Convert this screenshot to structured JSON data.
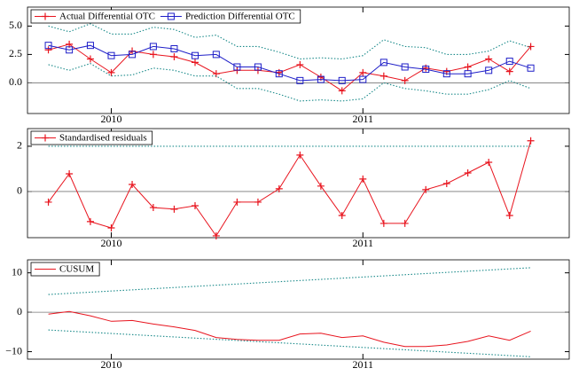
{
  "chart_data": [
    {
      "type": "line",
      "x": [
        2009.75,
        2009.833,
        2009.917,
        2010.0,
        2010.083,
        2010.167,
        2010.25,
        2010.333,
        2010.417,
        2010.5,
        2010.583,
        2010.667,
        2010.75,
        2010.833,
        2010.917,
        2011.0,
        2011.083,
        2011.167,
        2011.25,
        2011.333,
        2011.417,
        2011.5,
        2011.583,
        2011.667
      ],
      "xlim": [
        2009.667,
        2011.82
      ],
      "xticks": [
        2010,
        2011
      ],
      "ylim": [
        -2.7,
        6.67
      ],
      "yticks": [
        {
          "value": 0,
          "label": "0.0"
        },
        {
          "value": 2.5,
          "label": "2.5"
        },
        {
          "value": 5,
          "label": "5.0"
        }
      ],
      "zero_line": true,
      "series": [
        {
          "name": "Actual Differential OTC",
          "color": "#e8141e",
          "marker": "plus",
          "values": [
            2.9,
            3.4,
            2.1,
            0.9,
            2.8,
            2.5,
            2.3,
            1.8,
            0.8,
            1.1,
            1.1,
            0.9,
            1.6,
            0.5,
            -0.7,
            0.9,
            0.6,
            0.2,
            1.3,
            1.0,
            1.4,
            2.1,
            1.0,
            3.2
          ]
        },
        {
          "name": "Prediction Differential OTC",
          "color": "#1e1ec8",
          "marker": "square",
          "values": [
            3.3,
            2.9,
            3.3,
            2.4,
            2.5,
            3.2,
            3.0,
            2.4,
            2.5,
            1.4,
            1.4,
            0.8,
            0.2,
            0.3,
            0.2,
            0.3,
            1.8,
            1.4,
            1.2,
            0.8,
            0.8,
            1.1,
            1.9,
            1.3
          ]
        },
        {
          "color": "#1a8a8a",
          "dash": "dotted",
          "values": [
            5.0,
            4.5,
            5.2,
            4.3,
            4.3,
            4.9,
            4.7,
            4.0,
            4.2,
            3.2,
            3.2,
            2.7,
            2.1,
            2.2,
            2.1,
            2.4,
            3.8,
            3.2,
            3.1,
            2.5,
            2.5,
            2.8,
            3.7,
            3.1
          ]
        },
        {
          "color": "#1a8a8a",
          "dash": "dotted",
          "values": [
            1.6,
            1.1,
            1.7,
            0.6,
            0.7,
            1.3,
            1.1,
            0.6,
            0.6,
            -0.5,
            -0.5,
            -1.0,
            -1.6,
            -1.5,
            -1.6,
            -1.4,
            0.0,
            -0.5,
            -0.7,
            -1.0,
            -1.0,
            -0.6,
            0.2,
            -0.5
          ]
        }
      ]
    },
    {
      "type": "line",
      "x": [
        2009.75,
        2009.833,
        2009.917,
        2010.0,
        2010.083,
        2010.167,
        2010.25,
        2010.333,
        2010.417,
        2010.5,
        2010.583,
        2010.667,
        2010.75,
        2010.833,
        2010.917,
        2011.0,
        2011.083,
        2011.167,
        2011.25,
        2011.333,
        2011.417,
        2011.5,
        2011.583,
        2011.667
      ],
      "xlim": [
        2009.667,
        2011.82
      ],
      "xticks": [
        2010,
        2011
      ],
      "ylim": [
        -2.04,
        2.78
      ],
      "yticks": [
        0,
        2
      ],
      "zero_line": true,
      "series": [
        {
          "name": "Standardised residuals",
          "color": "#e8141e",
          "marker": "plus",
          "values": [
            -0.47,
            0.78,
            -1.33,
            -1.61,
            0.31,
            -0.71,
            -0.78,
            -0.63,
            -1.96,
            -0.47,
            -0.47,
            0.12,
            1.61,
            0.24,
            -1.06,
            0.55,
            -1.41,
            -1.41,
            0.08,
            0.35,
            0.82,
            1.29,
            -1.06,
            2.24
          ]
        },
        {
          "color": "#1a8a8a",
          "dash": "dotted",
          "x": [
            2009.75,
            2011.667
          ],
          "values": [
            2,
            2
          ]
        }
      ]
    },
    {
      "type": "line",
      "x": [
        2009.75,
        2009.833,
        2009.917,
        2010.0,
        2010.083,
        2010.167,
        2010.25,
        2010.333,
        2010.417,
        2010.5,
        2010.583,
        2010.667,
        2010.75,
        2010.833,
        2010.917,
        2011.0,
        2011.083,
        2011.167,
        2011.25,
        2011.333,
        2011.417,
        2011.5,
        2011.583,
        2011.667
      ],
      "xlim": [
        2009.667,
        2011.82
      ],
      "xticks": [
        2010,
        2011
      ],
      "ylim": [
        -11.9,
        13.3
      ],
      "yticks": [
        {
          "value": -10,
          "label": "−10"
        },
        0,
        10
      ],
      "zero_line": true,
      "series": [
        {
          "name": "CUSUM",
          "color": "#e8141e",
          "values": [
            -0.5,
            0.2,
            -0.9,
            -2.3,
            -2.1,
            -3.0,
            -3.7,
            -4.6,
            -6.4,
            -6.9,
            -7.1,
            -7.1,
            -5.5,
            -5.3,
            -6.4,
            -6.0,
            -7.6,
            -8.7,
            -8.7,
            -8.3,
            -7.4,
            -6.0,
            -7.1,
            -4.8
          ]
        },
        {
          "color": "#1a8a8a",
          "dash": "dotted",
          "x": [
            2009.75,
            2011.667
          ],
          "values": [
            4.5,
            11.3
          ]
        },
        {
          "color": "#1a8a8a",
          "dash": "dotted",
          "x": [
            2009.75,
            2011.667
          ],
          "values": [
            -4.5,
            -11.3
          ]
        }
      ]
    }
  ]
}
